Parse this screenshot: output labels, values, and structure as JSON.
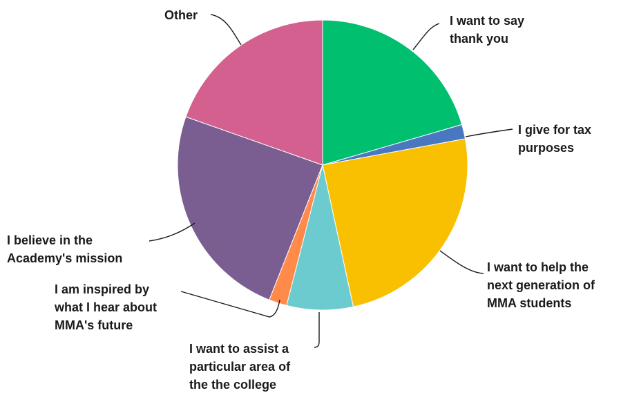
{
  "chart_data": {
    "type": "pie",
    "title": "",
    "slices": [
      {
        "label": "I want to say\nthank you",
        "value": 20.5,
        "color": "#00C070"
      },
      {
        "label": "I give for tax\npurposes",
        "value": 1.6,
        "color": "#4A78C0"
      },
      {
        "label": "I want to help the\nnext generation of\nMMA students",
        "value": 24.5,
        "color": "#F8C000"
      },
      {
        "label": "I want to assist a\nparticular area of\nthe the college",
        "value": 7.4,
        "color": "#6CCBCF"
      },
      {
        "label": "I am inspired by\nwhat I hear about\nMMA's future",
        "value": 2.0,
        "color": "#FF8A4A"
      },
      {
        "label": "I believe in the\nAcademy's mission",
        "value": 24.4,
        "color": "#7A5E91"
      },
      {
        "label": "Other",
        "value": 19.6,
        "color": "#D4608F"
      }
    ]
  }
}
